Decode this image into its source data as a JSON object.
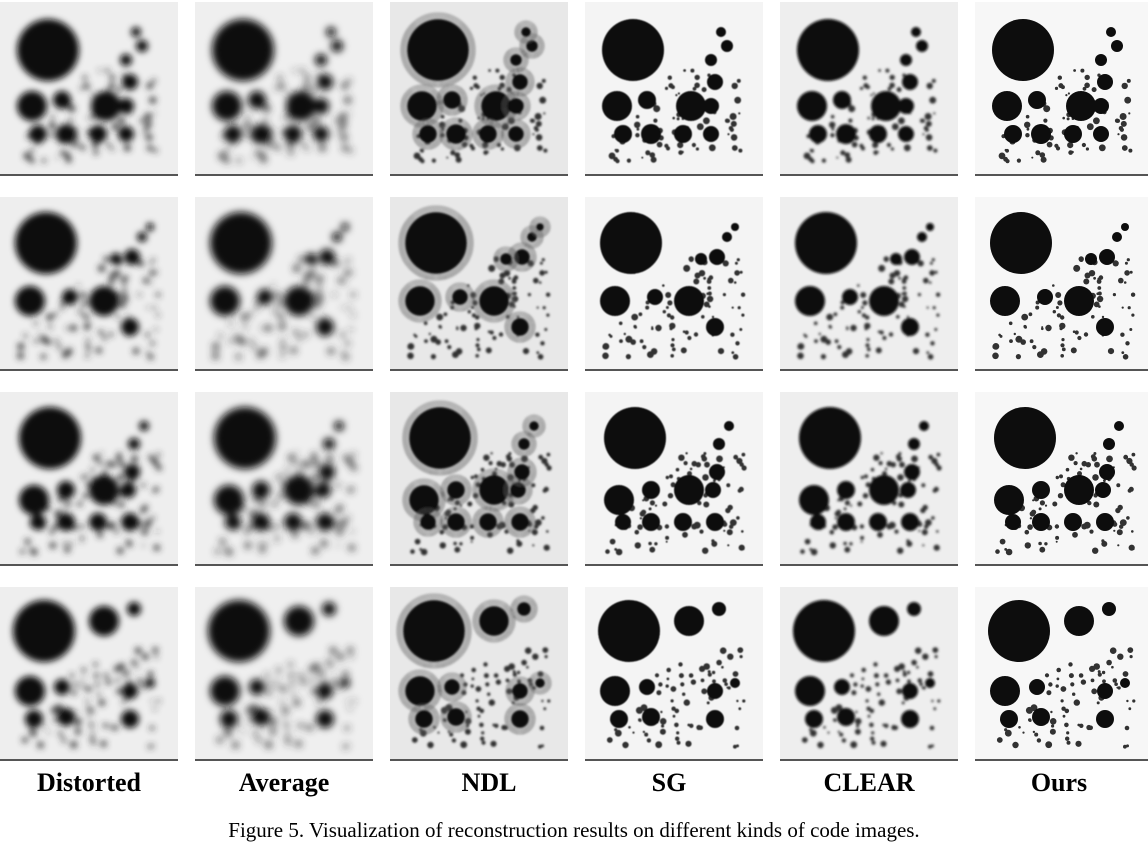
{
  "figure": {
    "columns": [
      "Distorted",
      "Average",
      "NDL",
      "SG",
      "CLEAR",
      "Ours"
    ],
    "caption": "Figure 5. Visualization of reconstruction results on different kinds of code images."
  }
}
